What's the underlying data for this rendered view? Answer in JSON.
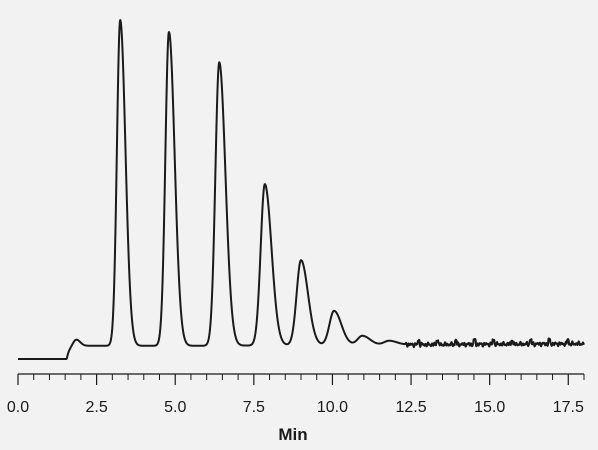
{
  "chart_data": {
    "type": "line",
    "title": "",
    "xlabel": "Min",
    "ylabel": "",
    "xlim": [
      0,
      18
    ],
    "ylim": [
      0,
      100
    ],
    "x_ticks": [
      0.0,
      2.5,
      5.0,
      7.5,
      10.0,
      12.5,
      15.0,
      17.5
    ],
    "x_tick_labels": [
      "0.0",
      "2.5",
      "5.0",
      "7.5",
      "10.0",
      "12.5",
      "15.0",
      "17.5"
    ],
    "x_minor_step": 0.5,
    "grid": false,
    "legend": "none",
    "colors": {
      "line": "#1a1a1a",
      "axis": "#1a1a1a",
      "background": "#f2f2f2"
    },
    "baseline": {
      "start": 0.0,
      "rise_at": 1.55,
      "level": 3.9,
      "drift_end": 6.0
    },
    "peaks": [
      {
        "rt": 1.85,
        "height": 5.8
      },
      {
        "rt": 3.25,
        "height": 100.0
      },
      {
        "rt": 4.8,
        "height": 96.5
      },
      {
        "rt": 6.4,
        "height": 87.5
      },
      {
        "rt": 7.85,
        "height": 51.5
      },
      {
        "rt": 9.0,
        "height": 29.0
      },
      {
        "rt": 10.05,
        "height": 14.0
      },
      {
        "rt": 10.95,
        "height": 6.6
      },
      {
        "rt": 11.8,
        "height": 5.1
      }
    ]
  }
}
